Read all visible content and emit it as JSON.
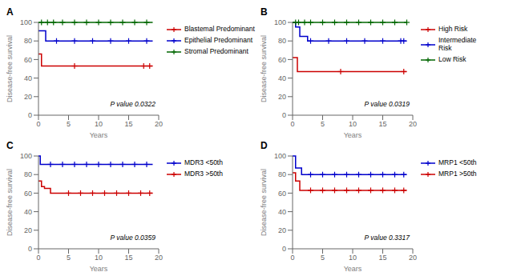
{
  "chart_data": [
    {
      "type": "step",
      "title": "A",
      "annotations": [
        "P value 0.0322"
      ],
      "xlabel": "Years",
      "ylabel": "Disease-free survival",
      "xlim": [
        0,
        20
      ],
      "ylim": [
        0,
        100
      ],
      "xticks": [
        0,
        5,
        10,
        15,
        20
      ],
      "yticks": [
        0,
        20,
        40,
        60,
        80,
        100
      ],
      "grid": false,
      "legend": "right",
      "series": [
        {
          "name": "Blastemal Predominant",
          "color": "#cc0000",
          "marker": "plus",
          "x": [
            0,
            0.5,
            0.5,
            19
          ],
          "values": [
            66,
            66,
            53,
            53
          ],
          "censors_x": [
            6,
            17.5,
            18.5
          ],
          "censors_y": [
            53,
            53,
            53
          ]
        },
        {
          "name": "Epithelial Predominant",
          "color": "#0000cc",
          "marker": "plus",
          "x": [
            0,
            1.2,
            1.2,
            19
          ],
          "values": [
            91,
            91,
            80,
            80
          ],
          "censors_x": [
            3,
            6,
            9,
            12,
            15,
            18
          ],
          "censors_y": [
            80,
            80,
            80,
            80,
            80,
            80
          ]
        },
        {
          "name": "Stromal Predominant",
          "color": "#006600",
          "marker": "plus",
          "x": [
            0,
            19
          ],
          "values": [
            100,
            100
          ],
          "censors_x": [
            0.5,
            1.5,
            2.5,
            4,
            6,
            8,
            10,
            12,
            14,
            16,
            18
          ],
          "censors_y": [
            100,
            100,
            100,
            100,
            100,
            100,
            100,
            100,
            100,
            100,
            100
          ]
        }
      ]
    },
    {
      "type": "step",
      "title": "B",
      "annotations": [
        "P value 0.0319"
      ],
      "xlabel": "Years",
      "ylabel": "Disease-free survival",
      "xlim": [
        0,
        20
      ],
      "ylim": [
        0,
        100
      ],
      "xticks": [
        0,
        5,
        10,
        15,
        20
      ],
      "yticks": [
        0,
        20,
        40,
        60,
        80,
        100
      ],
      "grid": false,
      "legend": "right",
      "series": [
        {
          "name": "High Risk",
          "color": "#cc0000",
          "marker": "plus",
          "x": [
            0,
            0.8,
            0.8,
            19
          ],
          "values": [
            62,
            62,
            47,
            47
          ],
          "censors_x": [
            8,
            18.5
          ],
          "censors_y": [
            47,
            47
          ]
        },
        {
          "name": "Intermediate\nRisk",
          "color": "#0000cc",
          "marker": "plus",
          "x": [
            0,
            0.5,
            0.5,
            1.2,
            1.2,
            2.5,
            2.5,
            19
          ],
          "values": [
            100,
            100,
            95,
            95,
            85,
            85,
            80,
            80
          ],
          "censors_x": [
            3,
            6,
            9,
            12,
            15,
            18,
            18.5
          ],
          "censors_y": [
            80,
            80,
            80,
            80,
            80,
            80,
            80
          ]
        },
        {
          "name": "Low Risk",
          "color": "#006600",
          "marker": "plus",
          "x": [
            0,
            19
          ],
          "values": [
            100,
            100
          ],
          "censors_x": [
            0.5,
            1,
            2,
            3,
            5,
            7,
            9,
            11,
            13,
            15,
            17,
            19
          ],
          "censors_y": [
            100,
            100,
            100,
            100,
            100,
            100,
            100,
            100,
            100,
            100,
            100,
            100
          ]
        }
      ]
    },
    {
      "type": "step",
      "title": "C",
      "annotations": [
        "P value 0.0359"
      ],
      "xlabel": "Years",
      "ylabel": "Disease-free survival",
      "xlim": [
        0,
        20
      ],
      "ylim": [
        0,
        100
      ],
      "xticks": [
        0,
        5,
        10,
        15,
        20
      ],
      "yticks": [
        0,
        20,
        40,
        60,
        80,
        100
      ],
      "grid": false,
      "legend": "right",
      "series": [
        {
          "name": "MDR3 <50th",
          "color": "#0000cc",
          "marker": "plus",
          "x": [
            0,
            0.3,
            0.3,
            19
          ],
          "values": [
            100,
            100,
            91,
            91
          ],
          "censors_x": [
            2,
            4,
            6,
            8,
            10,
            12,
            14,
            16,
            18
          ],
          "censors_y": [
            91,
            91,
            91,
            91,
            91,
            91,
            91,
            91,
            91
          ]
        },
        {
          "name": "MDR3 >50th",
          "color": "#cc0000",
          "marker": "plus",
          "x": [
            0,
            0.5,
            0.5,
            1.0,
            1.0,
            2.0,
            2.0,
            3.5,
            3.5,
            19
          ],
          "values": [
            73,
            73,
            67,
            67,
            65,
            65,
            60,
            60,
            60,
            60
          ],
          "censors_x": [
            5,
            7,
            9,
            11,
            13,
            15,
            17,
            18.5
          ],
          "censors_y": [
            60,
            60,
            60,
            60,
            60,
            60,
            60,
            60
          ]
        }
      ]
    },
    {
      "type": "step",
      "title": "D",
      "annotations": [
        "P value 0.3317"
      ],
      "xlabel": "Years",
      "ylabel": "Disease-free survival",
      "xlim": [
        0,
        20
      ],
      "ylim": [
        0,
        100
      ],
      "xticks": [
        0,
        5,
        10,
        15,
        20
      ],
      "yticks": [
        0,
        20,
        40,
        60,
        80,
        100
      ],
      "grid": false,
      "legend": "right",
      "series": [
        {
          "name": "MRP1 <50th",
          "color": "#0000cc",
          "marker": "plus",
          "x": [
            0,
            0.5,
            0.5,
            1.5,
            1.5,
            19
          ],
          "values": [
            100,
            100,
            87,
            87,
            80,
            80
          ],
          "censors_x": [
            3,
            5,
            7,
            9,
            11,
            13,
            15,
            17,
            18.5
          ],
          "censors_y": [
            80,
            80,
            80,
            80,
            80,
            80,
            80,
            80,
            80
          ]
        },
        {
          "name": "MRP1 >50th",
          "color": "#cc0000",
          "marker": "plus",
          "x": [
            0,
            0.5,
            0.5,
            1.2,
            1.2,
            19
          ],
          "values": [
            82,
            82,
            73,
            73,
            63,
            63
          ],
          "censors_x": [
            3,
            5,
            7,
            9,
            11,
            13,
            15,
            17,
            18.5
          ],
          "censors_y": [
            63,
            63,
            63,
            63,
            63,
            63,
            63,
            63,
            63
          ]
        }
      ]
    }
  ]
}
